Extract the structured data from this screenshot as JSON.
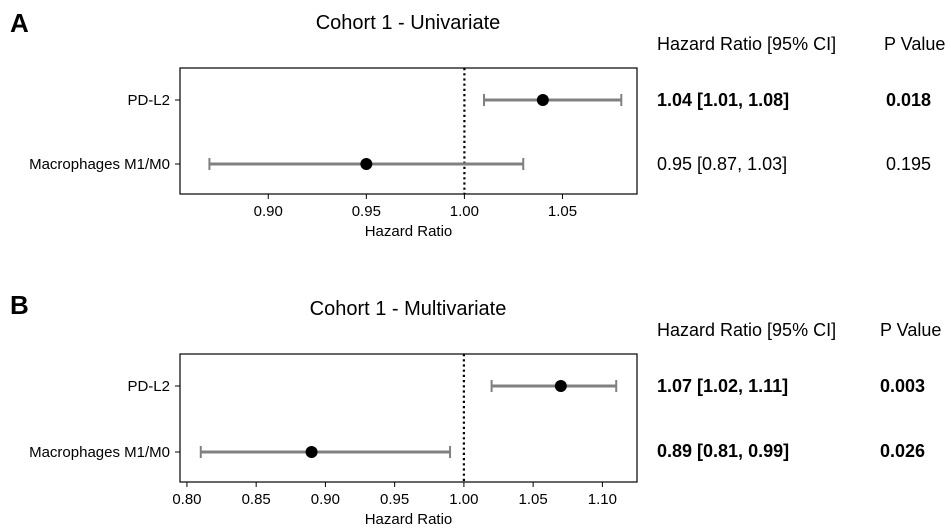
{
  "chart_data": [
    {
      "type": "forest",
      "panel_label": "A",
      "title": "Cohort 1 - Univariate",
      "xlabel": "Hazard Ratio",
      "xlim": [
        0.855,
        1.088
      ],
      "xticks": [
        0.9,
        0.95,
        1.0,
        1.05
      ],
      "xtick_labels": [
        "0.90",
        "0.95",
        "1.00",
        "1.05"
      ],
      "reference_line": 1.0,
      "column_headers": [
        "Hazard Ratio [95% CI]",
        "P Value"
      ],
      "rows": [
        {
          "label": "PD-L2",
          "hr": 1.04,
          "ci": [
            1.01,
            1.08
          ],
          "hr_text": "1.04 [1.01, 1.08]",
          "p_text": "0.018",
          "significant": true
        },
        {
          "label": "Macrophages M1/M0",
          "hr": 0.95,
          "ci": [
            0.87,
            1.03
          ],
          "hr_text": "0.95 [0.87, 1.03]",
          "p_text": "0.195",
          "significant": false
        }
      ]
    },
    {
      "type": "forest",
      "panel_label": "B",
      "title": "Cohort 1 - Multivariate",
      "xlabel": "Hazard Ratio",
      "xlim": [
        0.795,
        1.125
      ],
      "xticks": [
        0.8,
        0.85,
        0.9,
        0.95,
        1.0,
        1.05,
        1.1
      ],
      "xtick_labels": [
        "0.80",
        "0.85",
        "0.90",
        "0.95",
        "1.00",
        "1.05",
        "1.10"
      ],
      "reference_line": 1.0,
      "column_headers": [
        "Hazard Ratio [95% CI]",
        "P Value"
      ],
      "rows": [
        {
          "label": "PD-L2",
          "hr": 1.07,
          "ci": [
            1.02,
            1.11
          ],
          "hr_text": "1.07 [1.02, 1.11]",
          "p_text": "0.003",
          "significant": true
        },
        {
          "label": "Macrophages M1/M0",
          "hr": 0.89,
          "ci": [
            0.81,
            0.99
          ],
          "hr_text": "0.89 [0.81, 0.99]",
          "p_text": "0.026",
          "significant": true
        }
      ]
    }
  ],
  "colors": {
    "ci_line": "#808080",
    "point": "#000000",
    "reference": "#000000",
    "frame": "#000000"
  }
}
